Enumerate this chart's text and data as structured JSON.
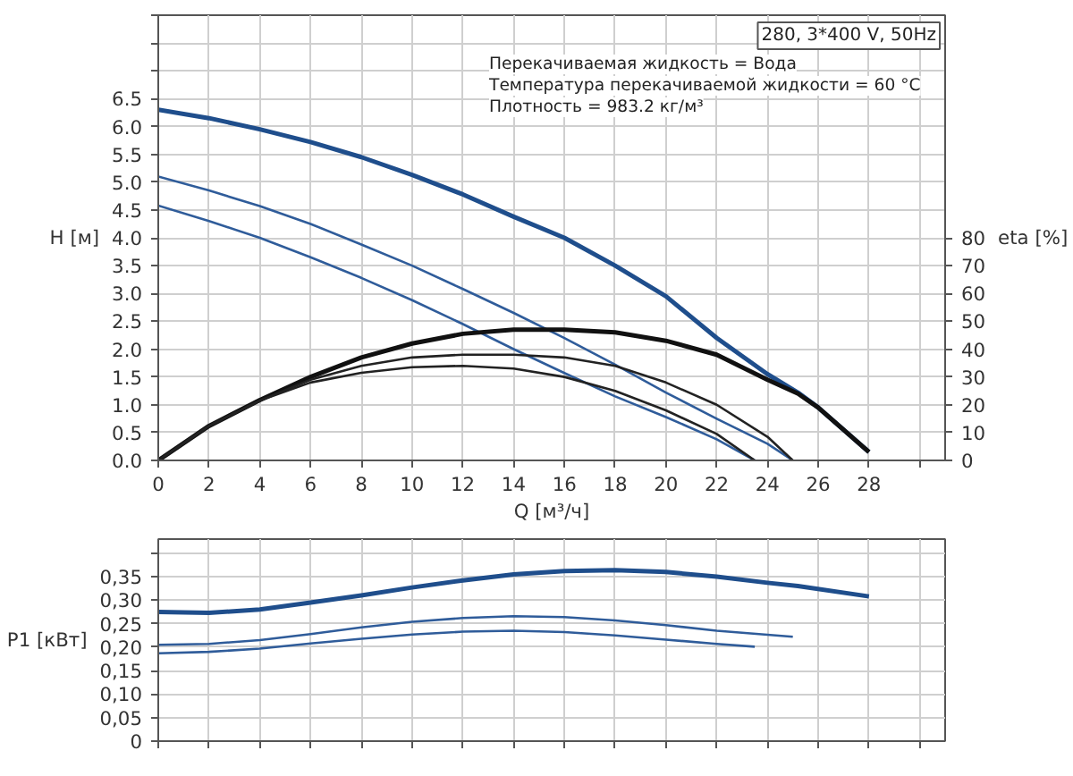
{
  "chart_data": [
    {
      "type": "line",
      "title": "280, 3*400 V, 50Hz",
      "annotations": [
        "Перекачиваемая жидкость = Вода",
        "Температура перекачиваемой жидкости = 60 °C",
        "Плотность = 983.2 кг/м³"
      ],
      "xlabel": "Q [м³/ч]",
      "ylabel": "H [м]",
      "y2label": "eta [%]",
      "xlim": [
        0,
        31
      ],
      "xticks": [
        0,
        2,
        4,
        6,
        8,
        10,
        12,
        14,
        16,
        18,
        20,
        22,
        24,
        26,
        28,
        {
          "value": 30,
          "label": null
        }
      ],
      "ylim": [
        0,
        8
      ],
      "yticks": [
        {
          "value": 0,
          "label": "0.0"
        },
        {
          "value": 0.5,
          "label": "0.5"
        },
        {
          "value": 1,
          "label": "1.0"
        },
        {
          "value": 1.5,
          "label": "1.5"
        },
        {
          "value": 2,
          "label": "2.0"
        },
        {
          "value": 2.5,
          "label": "2.5"
        },
        {
          "value": 3,
          "label": "3.0"
        },
        {
          "value": 3.5,
          "label": "3.5"
        },
        {
          "value": 4,
          "label": "4.0"
        },
        {
          "value": 4.5,
          "label": "4.5"
        },
        {
          "value": 5,
          "label": "5.0"
        },
        {
          "value": 5.5,
          "label": "5.5"
        },
        {
          "value": 6,
          "label": "6.0"
        },
        {
          "value": 6.5,
          "label": "6.5"
        },
        {
          "value": 7,
          "label": null
        },
        {
          "value": 7.5,
          "label": null
        },
        {
          "value": 8,
          "label": null
        }
      ],
      "y2lim": [
        0,
        160
      ],
      "y2ticks": [
        0,
        10,
        20,
        30,
        40,
        50,
        60,
        70,
        80
      ],
      "grid": true,
      "marker": "none",
      "line_style": "solid",
      "series": [
        {
          "color": "#1f4e8c",
          "x": [
            0,
            2,
            4,
            6,
            8,
            10,
            12,
            14,
            16,
            18,
            20,
            22,
            24,
            25.2,
            26,
            28
          ],
          "values": [
            6.3,
            6.15,
            5.95,
            5.72,
            5.45,
            5.13,
            4.78,
            4.38,
            4.0,
            3.5,
            2.95,
            2.2,
            1.55,
            1.22,
            0.95,
            0.15
          ]
        },
        {
          "color": "#2f5c9a",
          "x": [
            0,
            2,
            4,
            6,
            8,
            10,
            12,
            14,
            16,
            18,
            20,
            22,
            24,
            25
          ],
          "values": [
            5.1,
            4.85,
            4.57,
            4.25,
            3.88,
            3.5,
            3.08,
            2.65,
            2.2,
            1.72,
            1.22,
            0.75,
            0.3,
            0
          ]
        },
        {
          "color": "#2f5c9a",
          "x": [
            0,
            2,
            4,
            6,
            8,
            10,
            12,
            14,
            16,
            18,
            20,
            22,
            23.5
          ],
          "values": [
            4.58,
            4.3,
            4.0,
            3.65,
            3.28,
            2.88,
            2.45,
            2.0,
            1.57,
            1.15,
            0.78,
            0.38,
            0
          ]
        },
        {
          "color": "#111111",
          "axis": "y2",
          "x": [
            0,
            2,
            4,
            6,
            8,
            10,
            12,
            14,
            16,
            18,
            20,
            22,
            24,
            25.2,
            26,
            28
          ],
          "values": [
            0,
            12.4,
            21.7,
            30,
            37,
            42,
            45.5,
            47,
            47,
            46,
            43,
            38,
            29,
            24,
            19,
            3
          ]
        },
        {
          "color": "#222222",
          "axis": "y2",
          "x": [
            0,
            2,
            4,
            6,
            8,
            10,
            12,
            14,
            16,
            18,
            20,
            22,
            24,
            25
          ],
          "values": [
            0,
            12.4,
            21.5,
            29,
            34,
            37,
            38,
            38,
            37,
            34,
            28,
            20,
            8.5,
            0
          ]
        },
        {
          "color": "#222222",
          "axis": "y2",
          "x": [
            0,
            2,
            4,
            6,
            8,
            10,
            12,
            14,
            16,
            18,
            20,
            22,
            23.5
          ],
          "values": [
            0,
            12.4,
            21.5,
            28,
            31.5,
            33.5,
            34,
            33,
            30,
            25,
            18,
            9.5,
            0
          ]
        }
      ]
    },
    {
      "type": "line",
      "ylabel": "P1 [кВт]",
      "tick_labels": "y",
      "xlim": [
        0,
        31
      ],
      "xticks": [
        0,
        2,
        4,
        6,
        8,
        10,
        12,
        14,
        16,
        18,
        20,
        22,
        24,
        26,
        28,
        30
      ],
      "ylim": [
        0,
        0.43
      ],
      "yticks": [
        {
          "value": 0,
          "label": "0"
        },
        {
          "value": 0.05,
          "label": "0,05"
        },
        {
          "value": 0.1,
          "label": "0,10"
        },
        {
          "value": 0.15,
          "label": "0,15"
        },
        {
          "value": 0.2,
          "label": "0,20"
        },
        {
          "value": 0.25,
          "label": "0,25"
        },
        {
          "value": 0.3,
          "label": "0,30"
        },
        {
          "value": 0.35,
          "label": "0,35"
        },
        {
          "value": 0.4,
          "label": null
        }
      ],
      "grid": true,
      "marker": "none",
      "line_style": "solid",
      "series": [
        {
          "color": "#1f4e8c",
          "x": [
            0,
            2,
            4,
            6,
            8,
            10,
            12,
            14,
            16,
            18,
            20,
            22,
            24,
            25.2,
            28
          ],
          "values": [
            0.275,
            0.273,
            0.28,
            0.295,
            0.31,
            0.327,
            0.342,
            0.355,
            0.362,
            0.364,
            0.36,
            0.35,
            0.337,
            0.33,
            0.308
          ]
        },
        {
          "color": "#2f5c9a",
          "x": [
            0,
            2,
            4,
            6,
            8,
            10,
            12,
            14,
            16,
            18,
            20,
            22,
            25
          ],
          "values": [
            0.205,
            0.207,
            0.215,
            0.228,
            0.242,
            0.254,
            0.262,
            0.266,
            0.264,
            0.257,
            0.247,
            0.235,
            0.222
          ]
        },
        {
          "color": "#2f5c9a",
          "x": [
            0,
            2,
            4,
            6,
            8,
            10,
            12,
            14,
            16,
            18,
            20,
            22,
            23.5
          ],
          "values": [
            0.187,
            0.19,
            0.197,
            0.208,
            0.218,
            0.227,
            0.233,
            0.235,
            0.232,
            0.225,
            0.216,
            0.207,
            0.201
          ]
        }
      ]
    }
  ]
}
